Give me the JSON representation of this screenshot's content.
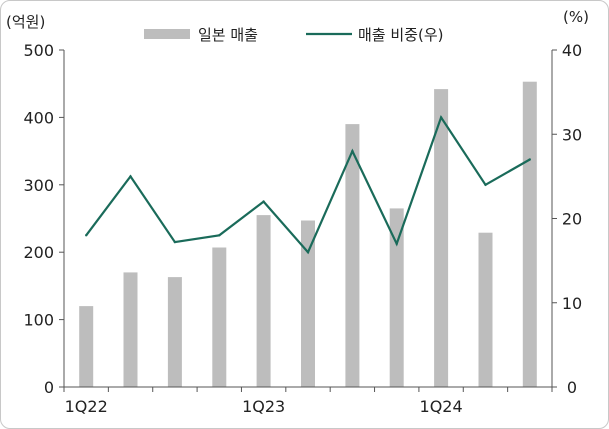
{
  "chart_data": {
    "type": "bar",
    "left_unit_label": "(억원)",
    "right_unit_label": "(%)",
    "categories": [
      "1Q22",
      "2Q22",
      "3Q22",
      "4Q22",
      "1Q23",
      "2Q23",
      "3Q23",
      "4Q23",
      "1Q24",
      "2Q24",
      "3Q24"
    ],
    "x_tick_labels": [
      {
        "index": 0,
        "label": "1Q22"
      },
      {
        "index": 4,
        "label": "1Q23"
      },
      {
        "index": 8,
        "label": "1Q24"
      }
    ],
    "series": [
      {
        "name": "일본 매출",
        "type": "bar",
        "axis": "left",
        "color": "#bdbdbd",
        "values": [
          120,
          170,
          163,
          207,
          255,
          247,
          390,
          265,
          442,
          229,
          453
        ]
      },
      {
        "name": "매출 비중(우)",
        "type": "line",
        "axis": "right",
        "color": "#1a6b5a",
        "values": [
          18,
          25,
          17.2,
          18,
          22,
          16,
          28,
          17,
          32,
          24,
          27
        ]
      }
    ],
    "left_axis": {
      "ylim": [
        0,
        500
      ],
      "ticks": [
        "0",
        "100",
        "200",
        "300",
        "400",
        "500"
      ]
    },
    "right_axis": {
      "ylim": [
        0,
        40
      ],
      "ticks": [
        "0",
        "10",
        "20",
        "30",
        "40"
      ]
    },
    "legend_placement": "top-center",
    "grid": false
  }
}
